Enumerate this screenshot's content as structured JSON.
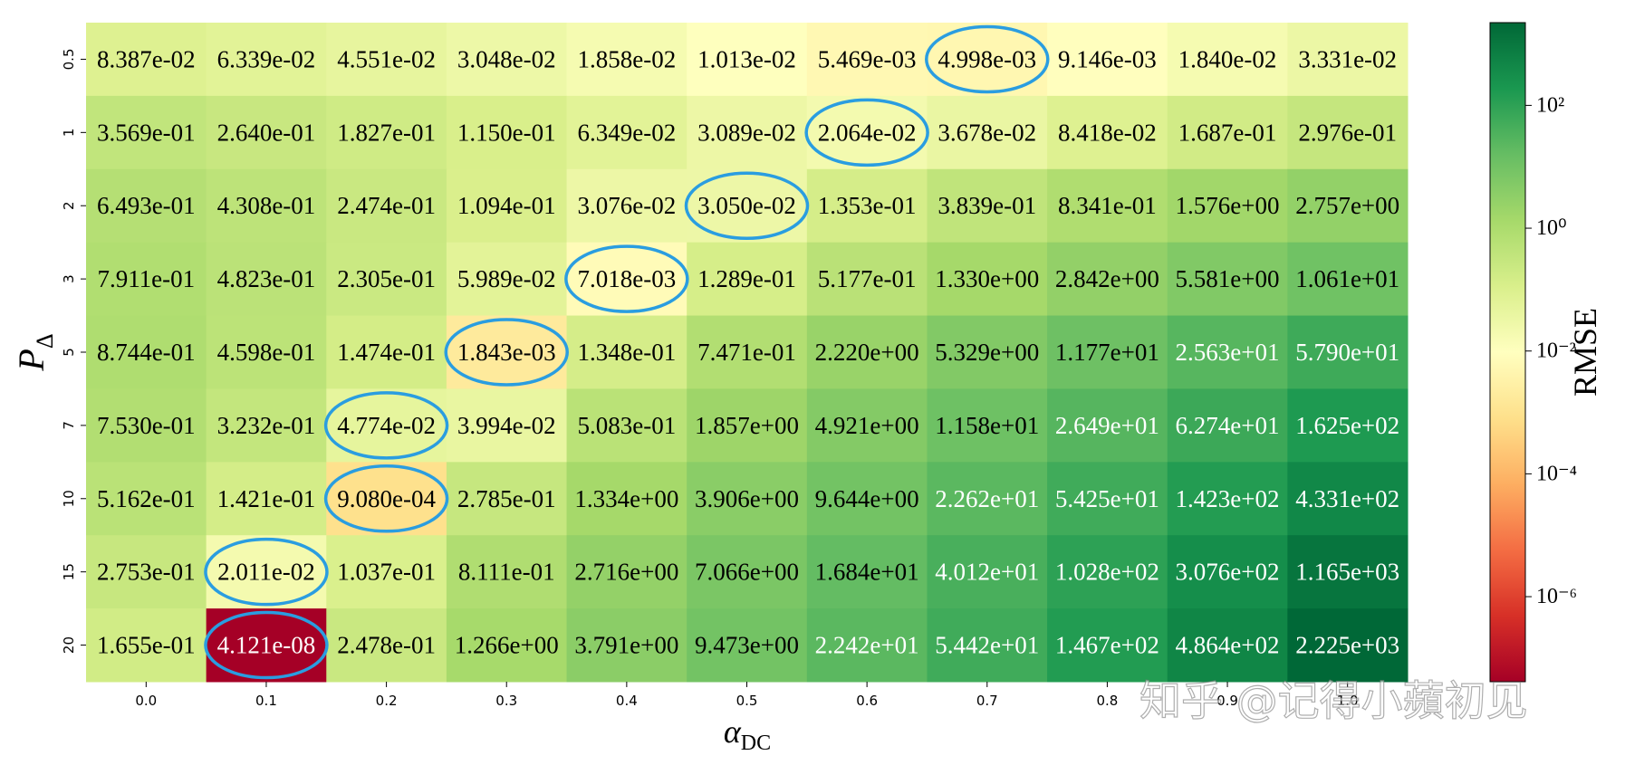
{
  "chart_data": {
    "type": "heatmap",
    "xlabel": {
      "main": "α",
      "sub": "DC"
    },
    "ylabel": {
      "main": "P",
      "sub": "Δ"
    },
    "colorbar_label": "RMSE",
    "watermark": "知乎 @记得小蘋初见",
    "x": [
      "0.0",
      "0.1",
      "0.2",
      "0.3",
      "0.4",
      "0.5",
      "0.6",
      "0.7",
      "0.8",
      "0.9",
      "1.0"
    ],
    "y": [
      "0.5",
      "1",
      "2",
      "3",
      "5",
      "7",
      "10",
      "15",
      "20"
    ],
    "colormap": "RdYlGn",
    "zscale": "log",
    "clim": [
      4.121e-08,
      2225.0
    ],
    "colorbar_ticks": [
      {
        "value": 100,
        "label": "10²"
      },
      {
        "value": 1,
        "label": "10⁰"
      },
      {
        "value": 0.01,
        "label": "10⁻²"
      },
      {
        "value": 0.0001,
        "label": "10⁻⁴"
      },
      {
        "value": 1e-06,
        "label": "10⁻⁶"
      }
    ],
    "highlight_color": "#2a9de0",
    "highlighted_cells": [
      [
        0,
        7
      ],
      [
        1,
        6
      ],
      [
        2,
        5
      ],
      [
        3,
        4
      ],
      [
        4,
        3
      ],
      [
        5,
        2
      ],
      [
        6,
        2
      ],
      [
        7,
        1
      ],
      [
        8,
        1
      ]
    ],
    "values": [
      [
        0.08387,
        0.06339,
        0.04551,
        0.03048,
        0.01858,
        0.01013,
        0.005469,
        0.004998,
        0.009146,
        0.0184,
        0.03331
      ],
      [
        0.3569,
        0.264,
        0.1827,
        0.115,
        0.06349,
        0.03089,
        0.02064,
        0.03678,
        0.08418,
        0.1687,
        0.2976
      ],
      [
        0.6493,
        0.4308,
        0.2474,
        0.1094,
        0.03076,
        0.0305,
        0.1353,
        0.3839,
        0.8341,
        1.576,
        2.757
      ],
      [
        0.7911,
        0.4823,
        0.2305,
        0.05989,
        0.007018,
        0.1289,
        0.5177,
        1.33,
        2.842,
        5.581,
        10.61
      ],
      [
        0.8744,
        0.4598,
        0.1474,
        0.001843,
        0.1348,
        0.7471,
        2.22,
        5.329,
        11.77,
        25.63,
        57.9
      ],
      [
        0.753,
        0.3232,
        0.04774,
        0.03994,
        0.5083,
        1.857,
        4.921,
        11.58,
        26.49,
        62.74,
        162.5
      ],
      [
        0.5162,
        0.1421,
        0.000908,
        0.2785,
        1.334,
        3.906,
        9.644,
        22.62,
        54.25,
        142.3,
        433.1
      ],
      [
        0.2753,
        0.02011,
        0.1037,
        0.8111,
        2.716,
        7.066,
        16.84,
        40.12,
        102.8,
        307.6,
        1165.0
      ],
      [
        0.1655,
        4.121e-08,
        0.2478,
        1.266,
        3.791,
        9.473,
        22.42,
        54.42,
        146.7,
        486.4,
        2225.0
      ]
    ],
    "value_labels": [
      [
        "8.387e-02",
        "6.339e-02",
        "4.551e-02",
        "3.048e-02",
        "1.858e-02",
        "1.013e-02",
        "5.469e-03",
        "4.998e-03",
        "9.146e-03",
        "1.840e-02",
        "3.331e-02"
      ],
      [
        "3.569e-01",
        "2.640e-01",
        "1.827e-01",
        "1.150e-01",
        "6.349e-02",
        "3.089e-02",
        "2.064e-02",
        "3.678e-02",
        "8.418e-02",
        "1.687e-01",
        "2.976e-01"
      ],
      [
        "6.493e-01",
        "4.308e-01",
        "2.474e-01",
        "1.094e-01",
        "3.076e-02",
        "3.050e-02",
        "1.353e-01",
        "3.839e-01",
        "8.341e-01",
        "1.576e+00",
        "2.757e+00"
      ],
      [
        "7.911e-01",
        "4.823e-01",
        "2.305e-01",
        "5.989e-02",
        "7.018e-03",
        "1.289e-01",
        "5.177e-01",
        "1.330e+00",
        "2.842e+00",
        "5.581e+00",
        "1.061e+01"
      ],
      [
        "8.744e-01",
        "4.598e-01",
        "1.474e-01",
        "1.843e-03",
        "1.348e-01",
        "7.471e-01",
        "2.220e+00",
        "5.329e+00",
        "1.177e+01",
        "2.563e+01",
        "5.790e+01"
      ],
      [
        "7.530e-01",
        "3.232e-01",
        "4.774e-02",
        "3.994e-02",
        "5.083e-01",
        "1.857e+00",
        "4.921e+00",
        "1.158e+01",
        "2.649e+01",
        "6.274e+01",
        "1.625e+02"
      ],
      [
        "5.162e-01",
        "1.421e-01",
        "9.080e-04",
        "2.785e-01",
        "1.334e+00",
        "3.906e+00",
        "9.644e+00",
        "2.262e+01",
        "5.425e+01",
        "1.423e+02",
        "4.331e+02"
      ],
      [
        "2.753e-01",
        "2.011e-02",
        "1.037e-01",
        "8.111e-01",
        "2.716e+00",
        "7.066e+00",
        "1.684e+01",
        "4.012e+01",
        "1.028e+02",
        "3.076e+02",
        "1.165e+03"
      ],
      [
        "1.655e-01",
        "4.121e-08",
        "2.478e-01",
        "1.266e+00",
        "3.791e+00",
        "9.473e+00",
        "2.242e+01",
        "5.442e+01",
        "1.467e+02",
        "4.864e+02",
        "2.225e+03"
      ]
    ]
  }
}
